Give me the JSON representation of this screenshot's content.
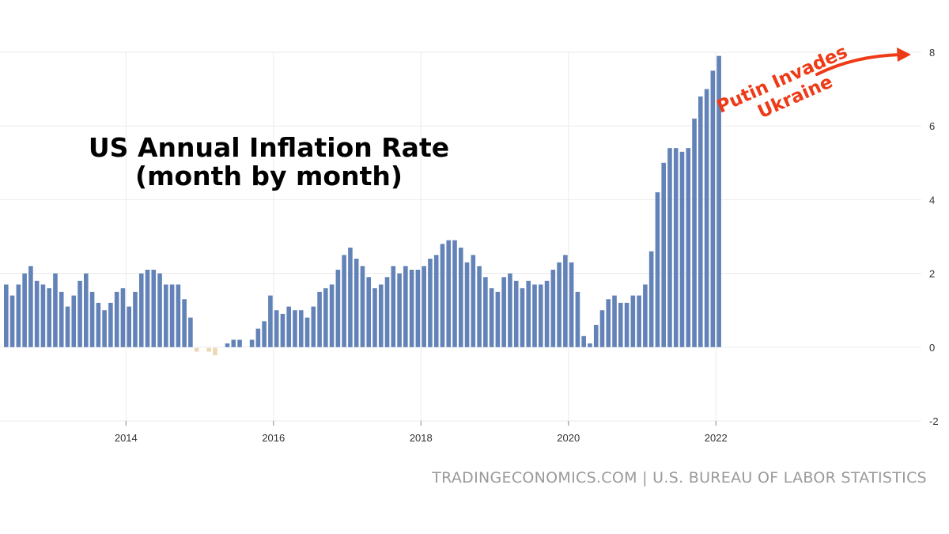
{
  "chart_data": {
    "type": "bar",
    "title": [
      "US Annual Inflation Rate",
      "(month by month)"
    ],
    "start": "2012-05",
    "frequency": "monthly",
    "x_tick_labels": [
      "2014",
      "2016",
      "2018",
      "2020",
      "2022"
    ],
    "y_tick_labels": [
      8,
      6,
      4,
      2,
      0,
      -2
    ],
    "ylim": [
      -2,
      8
    ],
    "values": [
      1.7,
      1.4,
      1.7,
      2.0,
      2.2,
      1.8,
      1.7,
      1.6,
      2.0,
      1.5,
      1.1,
      1.4,
      1.8,
      2.0,
      1.5,
      1.2,
      1.0,
      1.2,
      1.5,
      1.6,
      1.1,
      1.5,
      2.0,
      2.1,
      2.1,
      2.0,
      1.7,
      1.7,
      1.7,
      1.3,
      0.8,
      -0.1,
      0.0,
      -0.1,
      -0.2,
      0.0,
      0.1,
      0.2,
      0.2,
      0.0,
      0.2,
      0.5,
      0.7,
      1.4,
      1.0,
      0.9,
      1.1,
      1.0,
      1.0,
      0.8,
      1.1,
      1.5,
      1.6,
      1.7,
      2.1,
      2.5,
      2.7,
      2.4,
      2.2,
      1.9,
      1.6,
      1.7,
      1.9,
      2.2,
      2.0,
      2.2,
      2.1,
      2.1,
      2.2,
      2.4,
      2.5,
      2.8,
      2.9,
      2.9,
      2.7,
      2.3,
      2.5,
      2.2,
      1.9,
      1.6,
      1.5,
      1.9,
      2.0,
      1.8,
      1.6,
      1.8,
      1.7,
      1.7,
      1.8,
      2.1,
      2.3,
      2.5,
      2.3,
      1.5,
      0.3,
      0.1,
      0.6,
      1.0,
      1.3,
      1.4,
      1.2,
      1.2,
      1.4,
      1.4,
      1.7,
      2.6,
      4.2,
      5.0,
      5.4,
      5.4,
      5.3,
      5.4,
      6.2,
      6.8,
      7.0,
      7.5,
      7.9
    ],
    "colors": {
      "positive": "#6383b8",
      "negative": "#ecd8b4"
    },
    "grid": true,
    "annotation": {
      "lines": [
        "Putin Invades",
        "Ukraine"
      ],
      "color": "#ee3a16"
    },
    "source": "TRADINGECONOMICS.COM | U.S. BUREAU OF LABOR STATISTICS"
  }
}
